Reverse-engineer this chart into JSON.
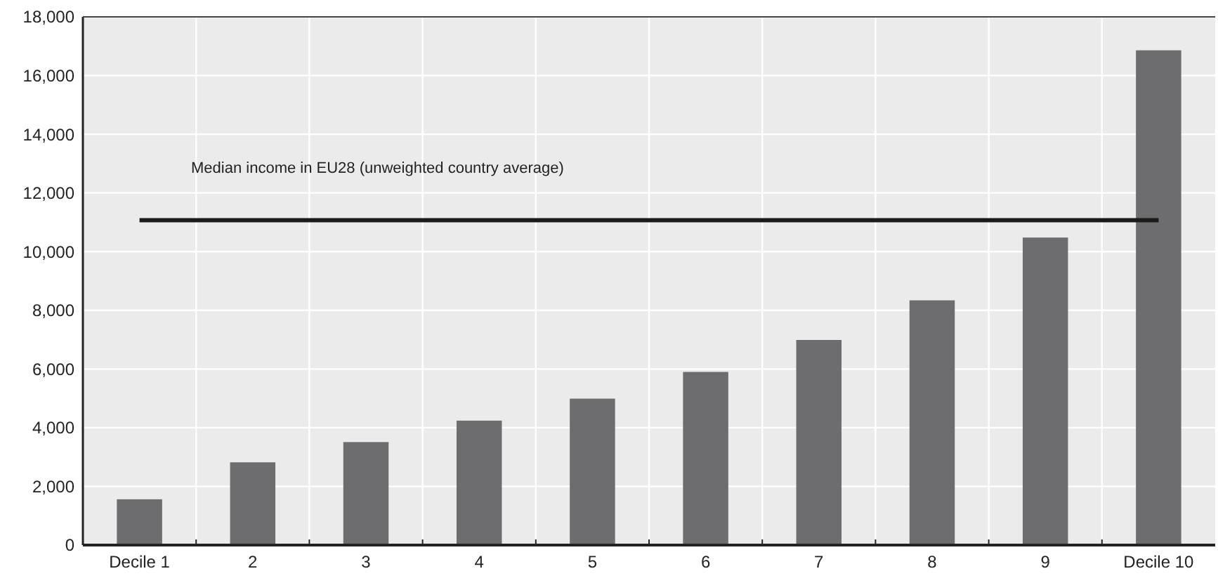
{
  "chart_data": {
    "type": "bar",
    "categories": [
      "Decile 1",
      "2",
      "3",
      "4",
      "5",
      "6",
      "7",
      "8",
      "9",
      "Decile 10"
    ],
    "values": [
      1560,
      2820,
      3510,
      4240,
      4990,
      5900,
      6990,
      8340,
      10480,
      16860
    ],
    "color": "#6d6d6f",
    "ylim": [
      0,
      18000
    ],
    "yticks": [
      {
        "value": 0,
        "label": "0"
      },
      {
        "value": 2000,
        "label": "2,000"
      },
      {
        "value": 4000,
        "label": "4,000"
      },
      {
        "value": 6000,
        "label": "6,000"
      },
      {
        "value": 8000,
        "label": "8,000"
      },
      {
        "value": 10000,
        "label": "10,000"
      },
      {
        "value": 12000,
        "label": "12,000"
      },
      {
        "value": 14000,
        "label": "14,000"
      },
      {
        "value": 16000,
        "label": "16,000"
      },
      {
        "value": 18000,
        "label": "18,000"
      }
    ],
    "grid": true,
    "ref_lines": [
      {
        "axis": "y",
        "value": 11070,
        "label": "Median income in EU28 (unweighted country average)",
        "color": "#1a1a1a"
      }
    ]
  }
}
